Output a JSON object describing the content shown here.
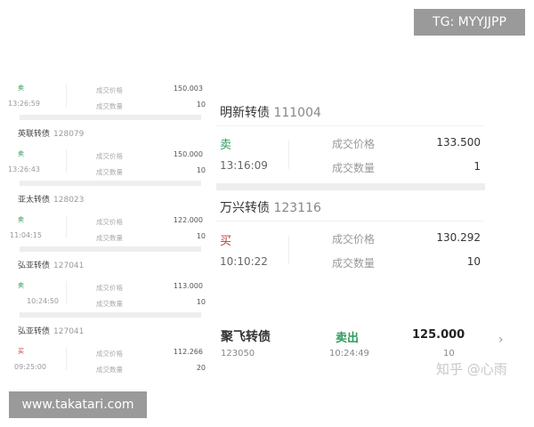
{
  "watermarks": {
    "tg": "TG: MYYJJPP",
    "site": "www.takatari.com",
    "zhihu": "知乎 @心雨"
  },
  "labels": {
    "price": "成交价格",
    "qty": "成交数量"
  },
  "colors": {
    "sell": "#2e9a5c",
    "buy": "#c0392b"
  },
  "left_list": [
    {
      "side": "卖",
      "time": "13:26:59",
      "price": "150.003",
      "qty": "10",
      "next_title": "英联转债",
      "next_code": "128079"
    },
    {
      "side": "卖",
      "time": "13:26:43",
      "price": "150.000",
      "qty": "10",
      "next_title": "亚太转债",
      "next_code": "128023"
    },
    {
      "side": "卖",
      "time": "11:04:15",
      "price": "122.000",
      "qty": "10",
      "next_title": "弘亚转债",
      "next_code": "127041"
    },
    {
      "side": "卖",
      "time": "10:24:50",
      "price": "113.000",
      "qty": "10",
      "next_title": "弘亚转债",
      "next_code": "127041"
    },
    {
      "side": "买",
      "time": "09:25:00",
      "price": "112.266",
      "qty": "20"
    }
  ],
  "right_list": [
    {
      "title": "明新转债",
      "code": "111004",
      "side": "卖",
      "time": "13:16:09",
      "price": "133.500",
      "qty": "1"
    },
    {
      "title": "万兴转债",
      "code": "123116",
      "side": "买",
      "time": "10:10:22",
      "price": "130.292",
      "qty": "10"
    }
  ],
  "summary": {
    "title": "聚飞转债",
    "code": "123050",
    "side": "卖出",
    "time": "10:24:49",
    "price": "125.000",
    "qty": "10"
  }
}
